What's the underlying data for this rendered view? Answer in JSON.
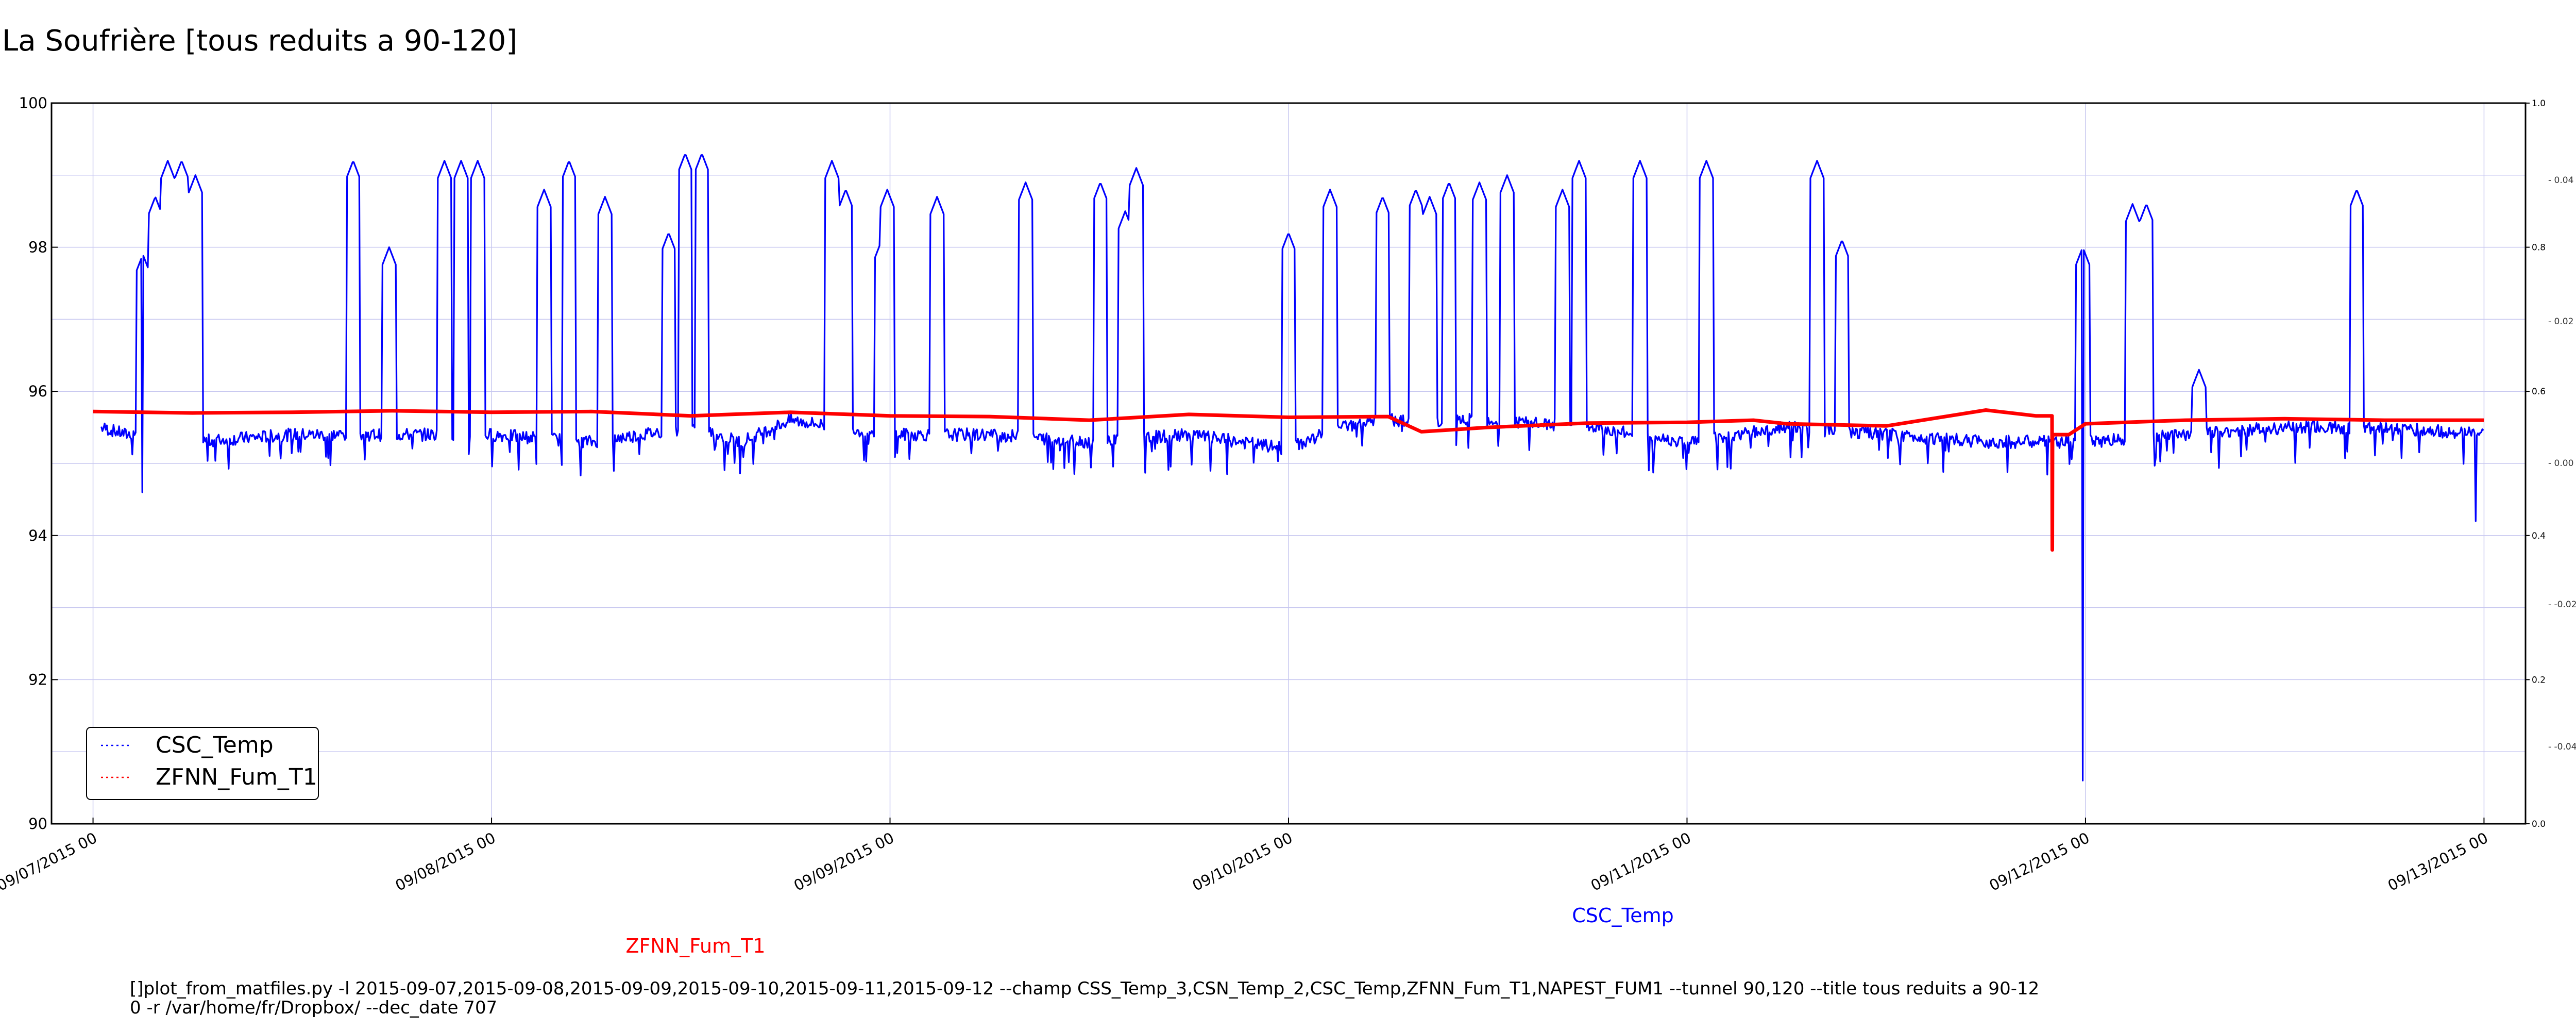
{
  "chart_data": {
    "type": "line",
    "title": "La Soufrière [tous reduits a 90-120]",
    "xlabel": "CSC_Temp",
    "ylabel": "",
    "x_ticks": [
      "09/07/2015 00",
      "09/08/2015 00",
      "09/09/2015 00",
      "09/10/2015 00",
      "09/11/2015 00",
      "09/12/2015 00",
      "09/13/2015 00"
    ],
    "xlim": [
      "2015-09-06 21:30",
      "2015-09-13 02:30"
    ],
    "y_ticks": [
      "90",
      "92",
      "94",
      "96",
      "98",
      "100"
    ],
    "ylim": [
      90,
      100
    ],
    "right_inner_ticks": [
      "0.0",
      "0.2",
      "0.4",
      "0.6",
      "0.8",
      "1.0"
    ],
    "right_outer_ticks": [
      "-0.04",
      "-0.02",
      "0.00",
      "0.02",
      "0.04"
    ],
    "grid": true,
    "legend_position": "lower-left",
    "series_label_red": "ZFNN_Fum_T1",
    "command_line_1": "[]plot_from_matfiles.py -l 2015-09-07,2015-09-08,2015-09-09,2015-09-10,2015-09-11,2015-09-12 --champ CSS_Temp_3,CSN_Temp_2,CSC_Temp,ZFNN_Fum_T1,NAPEST_FUM1 --tunnel 90,120 --title tous reduits a 90-12",
    "command_line_2": "0 -r /var/home/fr/Dropbox/ --dec_date 707",
    "colors": {
      "blue": "#0000ff",
      "red": "#ff0000",
      "grid": "#c8c8f0"
    },
    "series": [
      {
        "name": "CSC_Temp",
        "color": "#0000ff",
        "baseline": [
          [
            "2015-09-07 00:30",
            95.5
          ],
          [
            "2015-09-07 02:00",
            95.4
          ],
          [
            "2015-09-07 04:00",
            95.5
          ],
          [
            "2015-09-07 06:00",
            95.3
          ],
          [
            "2015-09-07 12:00",
            95.4
          ],
          [
            "2015-09-07 18:00",
            95.4
          ],
          [
            "2015-09-08 00:00",
            95.4
          ],
          [
            "2015-09-08 06:00",
            95.3
          ],
          [
            "2015-09-08 12:00",
            95.5
          ],
          [
            "2015-09-08 15:00",
            95.3
          ],
          [
            "2015-09-08 18:00",
            95.6
          ],
          [
            "2015-09-09 00:00",
            95.4
          ],
          [
            "2015-09-09 06:00",
            95.4
          ],
          [
            "2015-09-09 12:00",
            95.3
          ],
          [
            "2015-09-09 18:00",
            95.4
          ],
          [
            "2015-09-10 00:00",
            95.2
          ],
          [
            "2015-09-10 03:00",
            95.5
          ],
          [
            "2015-09-10 06:00",
            95.6
          ],
          [
            "2015-09-10 12:00",
            95.6
          ],
          [
            "2015-09-10 18:00",
            95.5
          ],
          [
            "2015-09-11 00:00",
            95.3
          ],
          [
            "2015-09-11 06:00",
            95.5
          ],
          [
            "2015-09-11 12:00",
            95.4
          ],
          [
            "2015-09-11 18:00",
            95.3
          ],
          [
            "2015-09-12 00:00",
            95.3
          ],
          [
            "2015-09-12 06:00",
            95.4
          ],
          [
            "2015-09-12 12:00",
            95.5
          ],
          [
            "2015-09-12 18:00",
            95.5
          ],
          [
            "2015-09-13 00:00",
            95.4
          ]
        ],
        "peaks": [
          [
            "2015-09-07 03:00",
            97.9
          ],
          [
            "2015-09-07 03:45",
            98.7
          ],
          [
            "2015-09-07 04:30",
            99.2
          ],
          [
            "2015-09-07 05:20",
            99.2
          ],
          [
            "2015-09-07 06:10",
            99.0
          ],
          [
            "2015-09-07 15:40",
            99.2
          ],
          [
            "2015-09-07 17:50",
            98.0
          ],
          [
            "2015-09-08 20:30",
            99.2
          ],
          [
            "2015-09-07 21:10",
            99.2
          ],
          [
            "2015-09-07 22:10",
            99.2
          ],
          [
            "2015-09-07 23:10",
            99.2
          ],
          [
            "2015-09-08 03:10",
            98.8
          ],
          [
            "2015-09-08 04:40",
            99.2
          ],
          [
            "2015-09-08 06:50",
            98.7
          ],
          [
            "2015-09-08 10:40",
            98.2
          ],
          [
            "2015-09-08 11:40",
            99.3
          ],
          [
            "2015-09-08 12:40",
            99.3
          ],
          [
            "2015-09-08 21:20",
            98.8
          ],
          [
            "2015-09-08 23:30",
            98.1
          ],
          [
            "2015-09-08 23:50",
            98.8
          ],
          [
            "2015-09-09 02:50",
            98.7
          ],
          [
            "2015-09-09 08:10",
            98.9
          ],
          [
            "2015-09-09 12:40",
            98.9
          ],
          [
            "2015-09-09 14:10",
            98.5
          ],
          [
            "2015-09-09 14:50",
            99.1
          ],
          [
            "2015-09-10 00:00",
            98.2
          ],
          [
            "2015-09-10 02:30",
            98.8
          ],
          [
            "2015-09-10 05:40",
            98.7
          ],
          [
            "2015-09-10 07:40",
            98.8
          ],
          [
            "2015-09-10 08:30",
            98.7
          ],
          [
            "2015-09-10 09:40",
            98.9
          ],
          [
            "2015-09-10 11:30",
            98.9
          ],
          [
            "2015-09-10 13:10",
            99.0
          ],
          [
            "2015-09-10 16:30",
            98.8
          ],
          [
            "2015-09-10 17:30",
            99.2
          ],
          [
            "2015-09-10 21:10",
            99.2
          ],
          [
            "2015-09-11 01:10",
            99.2
          ],
          [
            "2015-09-11 07:50",
            99.2
          ],
          [
            "2015-09-11 09:20",
            98.1
          ],
          [
            "2015-09-11 23:50",
            98.0
          ],
          [
            "2015-09-12 02:50",
            98.6
          ],
          [
            "2015-09-12 03:40",
            98.6
          ],
          [
            "2015-09-12 06:50",
            96.3
          ],
          [
            "2015-09-12 16:20",
            98.8
          ]
        ],
        "dips": [
          [
            "2015-09-07 03:00",
            94.6
          ],
          [
            "2015-09-11 23:50",
            90.6
          ],
          [
            "2015-09-12 23:30",
            94.2
          ]
        ]
      },
      {
        "name": "ZFNN_Fum_T1",
        "color": "#ff0000",
        "points": [
          [
            "2015-09-07 00:00",
            95.72
          ],
          [
            "2015-09-07 06:00",
            95.7
          ],
          [
            "2015-09-07 12:00",
            95.71
          ],
          [
            "2015-09-07 18:00",
            95.73
          ],
          [
            "2015-09-08 00:00",
            95.71
          ],
          [
            "2015-09-08 06:00",
            95.72
          ],
          [
            "2015-09-08 12:00",
            95.66
          ],
          [
            "2015-09-08 18:00",
            95.71
          ],
          [
            "2015-09-09 00:00",
            95.66
          ],
          [
            "2015-09-09 06:00",
            95.65
          ],
          [
            "2015-09-09 12:00",
            95.6
          ],
          [
            "2015-09-09 18:00",
            95.68
          ],
          [
            "2015-09-10 00:00",
            95.64
          ],
          [
            "2015-09-10 06:00",
            95.65
          ],
          [
            "2015-09-10 08:00",
            95.44
          ],
          [
            "2015-09-10 12:00",
            95.5
          ],
          [
            "2015-09-10 18:00",
            95.56
          ],
          [
            "2015-09-11 00:00",
            95.57
          ],
          [
            "2015-09-11 04:00",
            95.6
          ],
          [
            "2015-09-11 06:00",
            95.55
          ],
          [
            "2015-09-11 12:00",
            95.52
          ],
          [
            "2015-09-11 18:00",
            95.74
          ],
          [
            "2015-09-11 21:00",
            95.66
          ],
          [
            "2015-09-11 23:00",
            95.4
          ],
          [
            "2015-09-12 00:00",
            95.55
          ],
          [
            "2015-09-12 06:00",
            95.6
          ],
          [
            "2015-09-12 12:00",
            95.62
          ],
          [
            "2015-09-12 18:00",
            95.6
          ],
          [
            "2015-09-13 00:00",
            95.6
          ]
        ],
        "dips": [
          [
            "2015-09-11 22:00",
            93.8
          ]
        ]
      }
    ]
  }
}
